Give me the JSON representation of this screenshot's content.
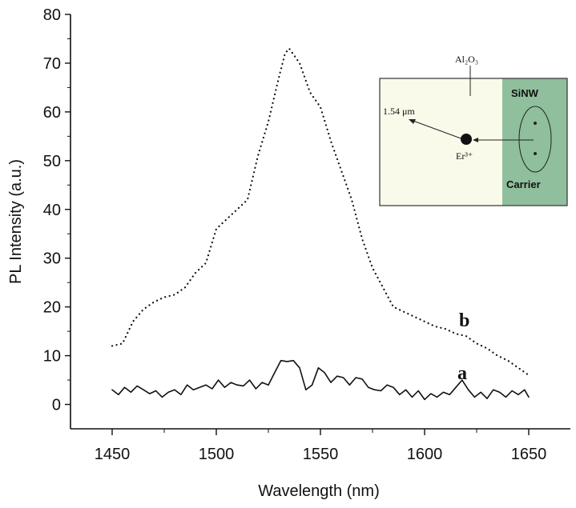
{
  "chart_data": {
    "type": "line",
    "xlabel": "Wavelength (nm)",
    "ylabel": "PL Intensity (a.u.)",
    "xlim": [
      1430,
      1670
    ],
    "ylim": [
      -5,
      80
    ],
    "xticks": [
      1450,
      1500,
      1550,
      1600,
      1650
    ],
    "yticks": [
      0,
      10,
      20,
      30,
      40,
      50,
      60,
      70,
      80
    ],
    "grid": false,
    "series": [
      {
        "name": "b",
        "style": "dotted",
        "color": "#111111",
        "x": [
          1450,
          1455,
          1460,
          1465,
          1470,
          1475,
          1480,
          1485,
          1490,
          1495,
          1500,
          1505,
          1510,
          1515,
          1520,
          1525,
          1530,
          1533,
          1535,
          1540,
          1545,
          1550,
          1555,
          1560,
          1565,
          1570,
          1575,
          1580,
          1585,
          1590,
          1595,
          1600,
          1605,
          1610,
          1615,
          1620,
          1625,
          1630,
          1635,
          1640,
          1645,
          1650
        ],
        "y": [
          12,
          12.5,
          17,
          19.5,
          21,
          22,
          22.5,
          24,
          27,
          29,
          36,
          38,
          40,
          42,
          51,
          58,
          67,
          72,
          73,
          70,
          64,
          61,
          54,
          48,
          42,
          34,
          28,
          24,
          20,
          19,
          18,
          17,
          16,
          15.5,
          14.5,
          14,
          12.5,
          11.5,
          10,
          9,
          7.5,
          6
        ]
      },
      {
        "name": "a",
        "style": "solid",
        "color": "#111111",
        "x": [
          1450,
          1453,
          1456,
          1459,
          1462,
          1465,
          1468,
          1471,
          1474,
          1477,
          1480,
          1483,
          1486,
          1489,
          1492,
          1495,
          1498,
          1501,
          1504,
          1507,
          1510,
          1513,
          1516,
          1519,
          1522,
          1525,
          1528,
          1531,
          1534,
          1537,
          1540,
          1543,
          1546,
          1549,
          1552,
          1555,
          1558,
          1561,
          1564,
          1567,
          1570,
          1573,
          1576,
          1579,
          1582,
          1585,
          1588,
          1591,
          1594,
          1597,
          1600,
          1603,
          1606,
          1609,
          1612,
          1615,
          1618,
          1621,
          1624,
          1627,
          1630,
          1633,
          1636,
          1639,
          1642,
          1645,
          1648,
          1650
        ],
        "y": [
          3,
          2,
          3.5,
          2.5,
          3.8,
          3,
          2.2,
          2.8,
          1.5,
          2.5,
          3,
          2,
          4,
          3,
          3.5,
          4,
          3.2,
          5,
          3.5,
          4.5,
          4,
          3.8,
          5,
          3.2,
          4.5,
          4,
          6.5,
          9,
          8.8,
          9,
          7.5,
          3,
          4,
          7.5,
          6.5,
          4.5,
          5.8,
          5.5,
          4,
          5.5,
          5.2,
          3.5,
          3,
          2.8,
          4,
          3.5,
          2,
          3,
          1.5,
          2.8,
          1,
          2.2,
          1.5,
          2.5,
          2,
          3.5,
          5,
          3,
          1.5,
          2.5,
          1.2,
          3,
          2.5,
          1.5,
          2.8,
          2,
          3,
          1.5
        ]
      }
    ],
    "series_labels": [
      "b",
      "a"
    ],
    "inset": {
      "label_al2o3": "Al₂O₃",
      "label_sinw": "SiNW",
      "label_wavelength": "1.54 μm",
      "label_er": "Er³⁺",
      "label_carrier": "Carrier",
      "left_color": "#fafaeb",
      "right_color": "#8fbf9c"
    }
  }
}
